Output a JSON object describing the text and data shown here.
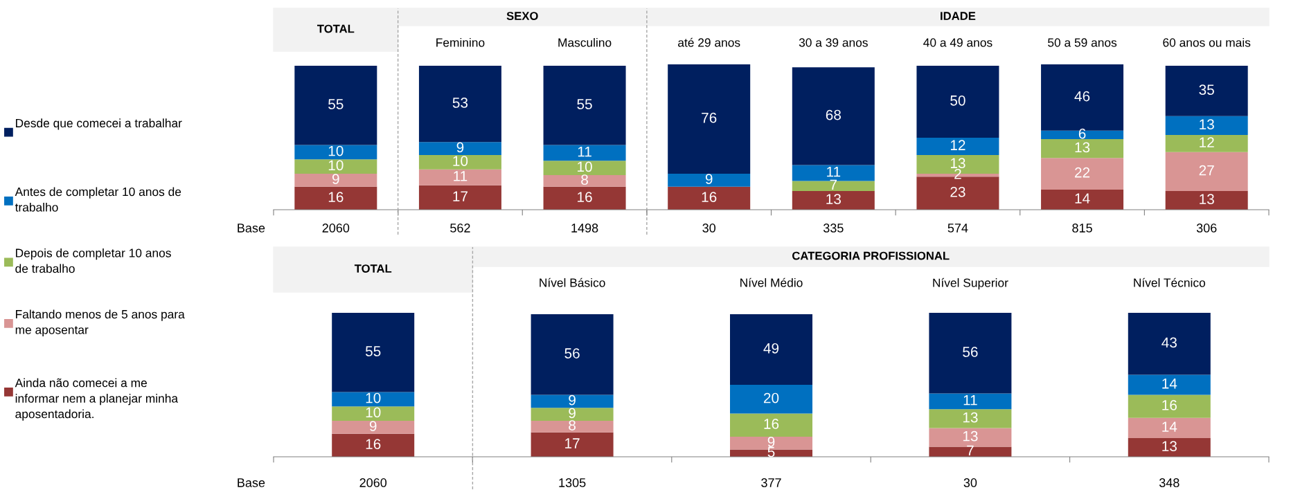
{
  "chart_data": [
    {
      "type": "bar",
      "stacked": true,
      "data_labels": true,
      "legend": "left",
      "tick_labels": "x",
      "title": "TOTAL",
      "ylabel": "Base",
      "categories": [
        null
      ],
      "series": [
        {
          "name": "Ainda não comecei a me informar nem a planejar minha aposentadoria.",
          "color": "#953735",
          "values": [
            16
          ]
        },
        {
          "name": "Faltando menos de 5 anos para me aposentar",
          "color": "#d99594",
          "values": [
            9
          ]
        },
        {
          "name": "Depois de completar 10 anos de trabalho",
          "color": "#9bbb59",
          "values": [
            10
          ]
        },
        {
          "name": "Antes de completar 10 anos de trabalho",
          "color": "#0070c0",
          "values": [
            10
          ]
        },
        {
          "name": "Desde que comecei a trabalhar",
          "color": "#001f5f",
          "values": [
            55
          ]
        }
      ],
      "annotations": [
        "2060"
      ]
    },
    {
      "type": "bar",
      "stacked": true,
      "data_labels": true,
      "tick_labels": "x",
      "title": "SEXO",
      "categories": [
        "Feminino",
        "Masculino"
      ],
      "series": [
        {
          "color": "#953735",
          "values": [
            17,
            16
          ]
        },
        {
          "color": "#d99594",
          "values": [
            11,
            8
          ]
        },
        {
          "color": "#9bbb59",
          "values": [
            10,
            10
          ]
        },
        {
          "color": "#0070c0",
          "values": [
            9,
            11
          ]
        },
        {
          "color": "#001f5f",
          "values": [
            53,
            55
          ]
        }
      ],
      "annotations": [
        "562",
        "1498"
      ]
    },
    {
      "type": "bar",
      "stacked": true,
      "data_labels": true,
      "tick_labels": "x",
      "title": "IDADE",
      "categories": [
        "até 29 anos",
        "30 a 39 anos",
        "40 a 49 anos",
        "50 a 59 anos",
        "60 anos ou mais"
      ],
      "series": [
        {
          "color": "#953735",
          "values": [
            16,
            13,
            23,
            14,
            13
          ]
        },
        {
          "color": "#d99594",
          "values": [
            null,
            null,
            2,
            22,
            27
          ]
        },
        {
          "color": "#9bbb59",
          "values": [
            null,
            7,
            13,
            13,
            12
          ]
        },
        {
          "color": "#0070c0",
          "values": [
            9,
            11,
            12,
            6,
            13
          ]
        },
        {
          "color": "#001f5f",
          "values": [
            76,
            68,
            50,
            46,
            35
          ]
        }
      ],
      "annotations": [
        "30",
        "335",
        "574",
        "815",
        "306"
      ]
    },
    {
      "type": "bar",
      "stacked": true,
      "data_labels": true,
      "tick_labels": "x",
      "title": "TOTAL",
      "ylabel": "Base",
      "categories": [
        null
      ],
      "series": [
        {
          "color": "#953735",
          "values": [
            16
          ]
        },
        {
          "color": "#d99594",
          "values": [
            9
          ]
        },
        {
          "color": "#9bbb59",
          "values": [
            10
          ]
        },
        {
          "color": "#0070c0",
          "values": [
            10
          ]
        },
        {
          "color": "#001f5f",
          "values": [
            55
          ]
        }
      ],
      "annotations": [
        "2060"
      ]
    },
    {
      "type": "bar",
      "stacked": true,
      "data_labels": true,
      "tick_labels": "x",
      "title": "CATEGORIA PROFISSIONAL",
      "categories": [
        "Nível Básico",
        "Nível Médio",
        "Nível Superior",
        "Nível Técnico"
      ],
      "series": [
        {
          "color": "#953735",
          "values": [
            17,
            5,
            7,
            13
          ]
        },
        {
          "color": "#d99594",
          "values": [
            8,
            9,
            13,
            14
          ]
        },
        {
          "color": "#9bbb59",
          "values": [
            9,
            16,
            13,
            16
          ]
        },
        {
          "color": "#0070c0",
          "values": [
            9,
            20,
            11,
            14
          ]
        },
        {
          "color": "#001f5f",
          "values": [
            56,
            49,
            56,
            43
          ]
        }
      ],
      "annotations": [
        "1305",
        "377",
        "30",
        "348"
      ]
    }
  ]
}
